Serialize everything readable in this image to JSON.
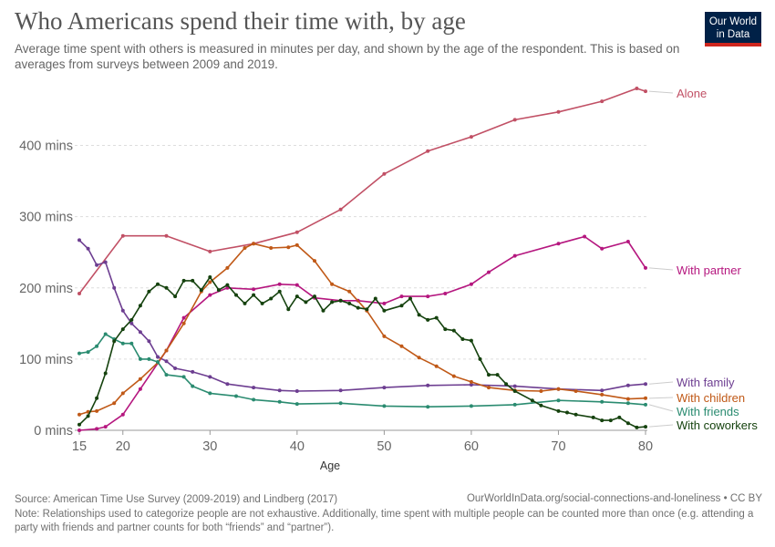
{
  "header": {
    "title": "Who Americans spend their time with, by age",
    "subtitle": "Average time spent with others is measured in minutes per day, and shown by the age of the respondent. This is based on averages from surveys between 2009 and 2019.",
    "logo_line1": "Our World",
    "logo_line2": "in Data"
  },
  "footer": {
    "source": "Source: American Time Use Survey (2009-2019) and Lindberg (2017)",
    "url": "OurWorldInData.org/social-connections-and-loneliness • CC BY",
    "note": "Note: Relationships used to categorize people are not exhaustive. Additionally, time spent with multiple people can be counted more than once (e.g. attending a party with friends and partner counts for both “friends” and “partner”)."
  },
  "chart_data": {
    "type": "line",
    "xlabel": "Age",
    "ylabel": "",
    "xlim": [
      15,
      80
    ],
    "ylim": [
      0,
      480
    ],
    "x_ticks": [
      15,
      20,
      30,
      40,
      50,
      60,
      70,
      80
    ],
    "y_ticks": [
      {
        "value": 0,
        "label": "0 mins"
      },
      {
        "value": 100,
        "label": "100 mins"
      },
      {
        "value": 200,
        "label": "200 mins"
      },
      {
        "value": 300,
        "label": "300 mins"
      },
      {
        "value": 400,
        "label": "400 mins"
      }
    ],
    "grid": "horizontal dashed",
    "series": [
      {
        "name": "Alone",
        "color": "#c15065",
        "points": [
          [
            15,
            192
          ],
          [
            20,
            273
          ],
          [
            25,
            273
          ],
          [
            30,
            251
          ],
          [
            35,
            262
          ],
          [
            40,
            278
          ],
          [
            45,
            310
          ],
          [
            50,
            360
          ],
          [
            55,
            392
          ],
          [
            60,
            412
          ],
          [
            65,
            436
          ],
          [
            70,
            447
          ],
          [
            75,
            462
          ],
          [
            79,
            480
          ],
          [
            80,
            476
          ]
        ]
      },
      {
        "name": "With partner",
        "color": "#b5177f",
        "points": [
          [
            15,
            0
          ],
          [
            17,
            2
          ],
          [
            18,
            5
          ],
          [
            20,
            22
          ],
          [
            22,
            58
          ],
          [
            25,
            112
          ],
          [
            27,
            158
          ],
          [
            30,
            190
          ],
          [
            32,
            200
          ],
          [
            35,
            198
          ],
          [
            38,
            205
          ],
          [
            40,
            204
          ],
          [
            42,
            186
          ],
          [
            45,
            182
          ],
          [
            47,
            182
          ],
          [
            50,
            178
          ],
          [
            52,
            188
          ],
          [
            55,
            188
          ],
          [
            57,
            192
          ],
          [
            60,
            205
          ],
          [
            62,
            222
          ],
          [
            65,
            245
          ],
          [
            70,
            262
          ],
          [
            73,
            272
          ],
          [
            75,
            255
          ],
          [
            78,
            265
          ],
          [
            80,
            228
          ]
        ]
      },
      {
        "name": "With family",
        "color": "#6d3e91",
        "points": [
          [
            15,
            267
          ],
          [
            16,
            255
          ],
          [
            17,
            232
          ],
          [
            18,
            236
          ],
          [
            19,
            200
          ],
          [
            20,
            168
          ],
          [
            21,
            150
          ],
          [
            22,
            138
          ],
          [
            23,
            125
          ],
          [
            24,
            103
          ],
          [
            25,
            97
          ],
          [
            26,
            87
          ],
          [
            28,
            82
          ],
          [
            30,
            75
          ],
          [
            32,
            65
          ],
          [
            35,
            60
          ],
          [
            38,
            56
          ],
          [
            40,
            55
          ],
          [
            45,
            56
          ],
          [
            50,
            60
          ],
          [
            55,
            63
          ],
          [
            60,
            64
          ],
          [
            65,
            62
          ],
          [
            70,
            58
          ],
          [
            75,
            56
          ],
          [
            78,
            63
          ],
          [
            80,
            65
          ]
        ]
      },
      {
        "name": "With children",
        "color": "#c05917",
        "points": [
          [
            15,
            22
          ],
          [
            16,
            26
          ],
          [
            17,
            27
          ],
          [
            19,
            38
          ],
          [
            20,
            52
          ],
          [
            22,
            72
          ],
          [
            24,
            95
          ],
          [
            25,
            112
          ],
          [
            27,
            150
          ],
          [
            29,
            195
          ],
          [
            30,
            208
          ],
          [
            32,
            228
          ],
          [
            34,
            256
          ],
          [
            35,
            262
          ],
          [
            37,
            256
          ],
          [
            39,
            257
          ],
          [
            40,
            260
          ],
          [
            42,
            238
          ],
          [
            44,
            205
          ],
          [
            46,
            195
          ],
          [
            48,
            168
          ],
          [
            50,
            132
          ],
          [
            52,
            118
          ],
          [
            54,
            102
          ],
          [
            56,
            90
          ],
          [
            58,
            76
          ],
          [
            60,
            68
          ],
          [
            62,
            60
          ],
          [
            65,
            56
          ],
          [
            68,
            55
          ],
          [
            70,
            58
          ],
          [
            72,
            55
          ],
          [
            75,
            50
          ],
          [
            78,
            44
          ],
          [
            80,
            45
          ]
        ]
      },
      {
        "name": "With friends",
        "color": "#2a8b70",
        "points": [
          [
            15,
            108
          ],
          [
            16,
            110
          ],
          [
            17,
            118
          ],
          [
            18,
            135
          ],
          [
            19,
            128
          ],
          [
            20,
            122
          ],
          [
            21,
            122
          ],
          [
            22,
            100
          ],
          [
            23,
            100
          ],
          [
            24,
            96
          ],
          [
            25,
            78
          ],
          [
            27,
            75
          ],
          [
            28,
            62
          ],
          [
            30,
            52
          ],
          [
            33,
            48
          ],
          [
            35,
            43
          ],
          [
            38,
            40
          ],
          [
            40,
            37
          ],
          [
            45,
            38
          ],
          [
            50,
            34
          ],
          [
            55,
            33
          ],
          [
            60,
            34
          ],
          [
            65,
            36
          ],
          [
            70,
            42
          ],
          [
            75,
            40
          ],
          [
            78,
            38
          ],
          [
            80,
            36
          ]
        ]
      },
      {
        "name": "With coworkers",
        "color": "#15420e",
        "points": [
          [
            15,
            8
          ],
          [
            16,
            20
          ],
          [
            17,
            45
          ],
          [
            18,
            80
          ],
          [
            19,
            125
          ],
          [
            20,
            142
          ],
          [
            21,
            155
          ],
          [
            22,
            175
          ],
          [
            23,
            195
          ],
          [
            24,
            205
          ],
          [
            25,
            200
          ],
          [
            26,
            188
          ],
          [
            27,
            210
          ],
          [
            28,
            210
          ],
          [
            29,
            197
          ],
          [
            30,
            215
          ],
          [
            31,
            197
          ],
          [
            32,
            204
          ],
          [
            33,
            190
          ],
          [
            34,
            178
          ],
          [
            35,
            190
          ],
          [
            36,
            178
          ],
          [
            37,
            185
          ],
          [
            38,
            195
          ],
          [
            39,
            170
          ],
          [
            40,
            188
          ],
          [
            41,
            180
          ],
          [
            42,
            188
          ],
          [
            43,
            168
          ],
          [
            44,
            180
          ],
          [
            45,
            182
          ],
          [
            46,
            178
          ],
          [
            47,
            172
          ],
          [
            48,
            170
          ],
          [
            49,
            185
          ],
          [
            50,
            168
          ],
          [
            52,
            175
          ],
          [
            53,
            185
          ],
          [
            54,
            162
          ],
          [
            55,
            155
          ],
          [
            56,
            158
          ],
          [
            57,
            142
          ],
          [
            58,
            140
          ],
          [
            59,
            128
          ],
          [
            60,
            126
          ],
          [
            61,
            100
          ],
          [
            62,
            78
          ],
          [
            63,
            78
          ],
          [
            64,
            65
          ],
          [
            65,
            55
          ],
          [
            67,
            42
          ],
          [
            68,
            35
          ],
          [
            70,
            27
          ],
          [
            71,
            25
          ],
          [
            72,
            22
          ],
          [
            74,
            18
          ],
          [
            75,
            14
          ],
          [
            76,
            14
          ],
          [
            77,
            18
          ],
          [
            78,
            10
          ],
          [
            79,
            4
          ],
          [
            80,
            5
          ]
        ]
      }
    ]
  }
}
